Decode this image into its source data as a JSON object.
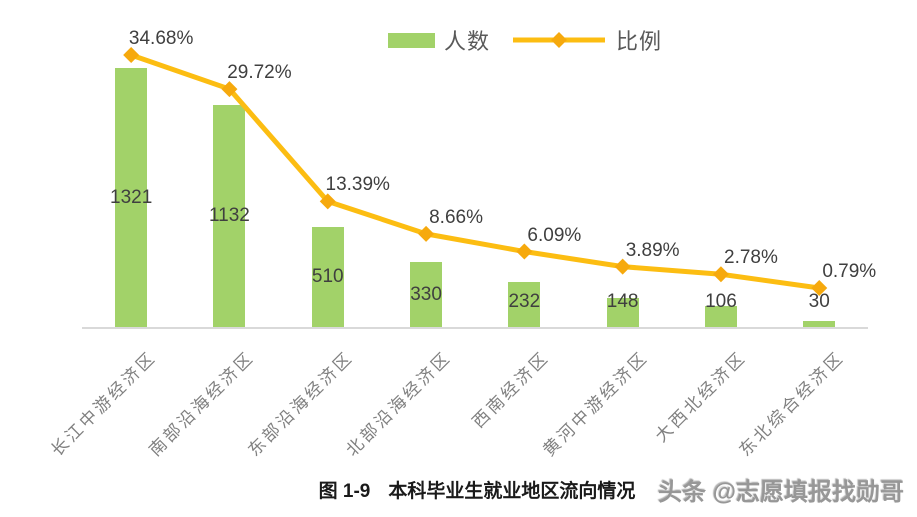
{
  "legend": {
    "series1": "人数",
    "series2": "比例"
  },
  "caption": {
    "figure_label": "图 1-9",
    "title": "本科毕业生就业地区流向情况"
  },
  "watermark": "头条 @志愿填报找勋哥",
  "colors": {
    "bar": "#a2d269",
    "line": "#fcbd12",
    "marker": "#f6a90d",
    "value_label": "#3f3f3f",
    "axis_label": "#808080",
    "baseline": "#d9d9d9"
  },
  "chart_data": {
    "type": "bar",
    "subtype": "combo-bar-line",
    "title": "图 1-9 本科毕业生就业地区流向情况",
    "categories": [
      "长江中游经济区",
      "南部沿海经济区",
      "东部沿海经济区",
      "北部沿海经济区",
      "西南经济区",
      "黄河中游经济区",
      "大西北经济区",
      "东北综合经济区"
    ],
    "series": [
      {
        "name": "人数",
        "type": "bar",
        "values": [
          1321,
          1132,
          510,
          330,
          232,
          148,
          106,
          30
        ]
      },
      {
        "name": "比例",
        "type": "line",
        "unit": "%",
        "values": [
          34.68,
          29.72,
          13.39,
          8.66,
          6.09,
          3.89,
          2.78,
          0.79
        ]
      }
    ],
    "line_labels": [
      "34.68%",
      "29.72%",
      "13.39%",
      "8.66%",
      "6.09%",
      "3.89%",
      "2.78%",
      "0.79%"
    ],
    "legend_position": "top-center",
    "grid": false,
    "value_labels_shown": true
  }
}
